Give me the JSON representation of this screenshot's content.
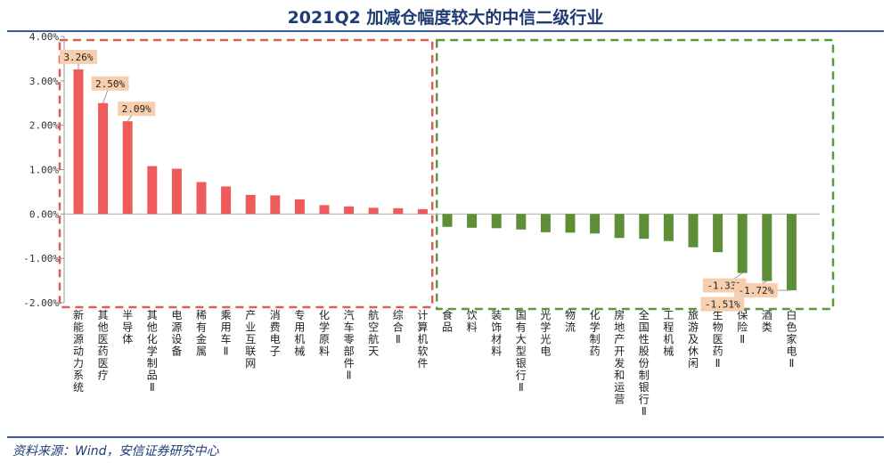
{
  "header": {
    "title": "2021Q2 加减仓幅度较大的中信二级行业"
  },
  "footer": {
    "source": "资料来源：Wind，安信证券研究中心"
  },
  "colors": {
    "positive": "#ef5a5a",
    "negative": "#5e8e35",
    "label_bg": "#f8cfae",
    "title": "#1f3b73",
    "pos_box": "#e05c5c",
    "neg_box": "#5b9a3a"
  },
  "chart_data": {
    "type": "bar",
    "title": "2021Q2 加减仓幅度较大的中信二级行业",
    "ylim": [
      -2.0,
      4.0
    ],
    "yticks": [
      "4.00%",
      "3.00%",
      "2.00%",
      "1.00%",
      "0.00%",
      "-1.00%",
      "-2.00%"
    ],
    "ytick_values": [
      4,
      3,
      2,
      1,
      0,
      -1,
      -2
    ],
    "grid": false,
    "categories": [
      "新能源动力系统",
      "其他医药医疗",
      "半导体",
      "其他化学制品Ⅱ",
      "电源设备",
      "稀有金属",
      "乘用车Ⅱ",
      "产业互联网",
      "消费电子",
      "专用机械",
      "化学原料",
      "汽车零部件Ⅱ",
      "航空航天",
      "综合Ⅱ",
      "计算机软件",
      "食品",
      "饮料",
      "装饰材料",
      "国有大型银行Ⅱ",
      "光学光电",
      "物流",
      "化学制药",
      "房地产开发和运营",
      "全国性股份制银行Ⅱ",
      "工程机械",
      "旅游及休闲",
      "生物医药Ⅱ",
      "保险Ⅱ",
      "酒类",
      "白色家电Ⅱ"
    ],
    "values": [
      3.26,
      2.5,
      2.09,
      1.08,
      1.02,
      0.72,
      0.62,
      0.43,
      0.42,
      0.33,
      0.2,
      0.17,
      0.14,
      0.13,
      0.11,
      -0.29,
      -0.31,
      -0.32,
      -0.35,
      -0.41,
      -0.42,
      -0.44,
      -0.54,
      -0.56,
      -0.61,
      -0.75,
      -0.86,
      -1.33,
      -1.51,
      -1.72
    ],
    "data_labels": [
      {
        "index": 0,
        "text": "3.26%"
      },
      {
        "index": 1,
        "text": "2.50%"
      },
      {
        "index": 2,
        "text": "2.09%"
      },
      {
        "index": 27,
        "text": "-1.33%"
      },
      {
        "index": 28,
        "text": "-1.51%"
      },
      {
        "index": 29,
        "text": "-1.72%"
      }
    ]
  }
}
